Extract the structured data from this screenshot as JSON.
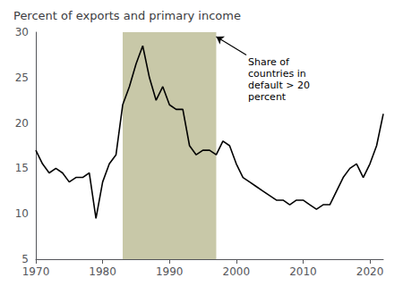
{
  "chart_data": {
    "type": "line",
    "title": "Percent of exports and primary income",
    "x": [
      1970,
      1971,
      1972,
      1973,
      1974,
      1975,
      1976,
      1977,
      1978,
      1979,
      1980,
      1981,
      1982,
      1983,
      1984,
      1985,
      1986,
      1987,
      1988,
      1989,
      1990,
      1991,
      1992,
      1993,
      1994,
      1995,
      1996,
      1997,
      1998,
      1999,
      2000,
      2001,
      2002,
      2003,
      2004,
      2005,
      2006,
      2007,
      2008,
      2009,
      2010,
      2011,
      2012,
      2013,
      2014,
      2015,
      2016,
      2017,
      2018,
      2019,
      2020,
      2021,
      2022
    ],
    "values": [
      17.0,
      15.5,
      14.5,
      15.0,
      14.5,
      13.5,
      14.0,
      14.0,
      14.5,
      9.5,
      13.5,
      15.5,
      16.5,
      22.0,
      24.0,
      26.5,
      28.5,
      25.0,
      22.5,
      24.0,
      22.0,
      21.5,
      21.5,
      17.5,
      16.5,
      17.0,
      17.0,
      16.5,
      18.0,
      17.5,
      15.5,
      14.0,
      13.5,
      13.0,
      12.5,
      12.0,
      11.5,
      11.5,
      11.0,
      11.5,
      11.5,
      11.0,
      10.5,
      11.0,
      11.0,
      12.5,
      14.0,
      15.0,
      15.5,
      14.0,
      15.5,
      17.5,
      21.0
    ],
    "color": "#000000",
    "xlim": [
      1970,
      2022
    ],
    "ylim": [
      5,
      30
    ],
    "xticks": [
      1970,
      1980,
      1990,
      2000,
      2010,
      2020
    ],
    "yticks": [
      5,
      10,
      15,
      20,
      25,
      30
    ],
    "grid": false,
    "spans": [
      {
        "x0": 1983,
        "x1": 1997,
        "color": "#c8c8a8"
      }
    ],
    "annotations": [
      {
        "text": "Share of\ncountries in\ndefault > 20\npercent",
        "x": 1997,
        "y": 29.5,
        "text_x": 2001.5,
        "text_y": 27.5
      }
    ]
  }
}
